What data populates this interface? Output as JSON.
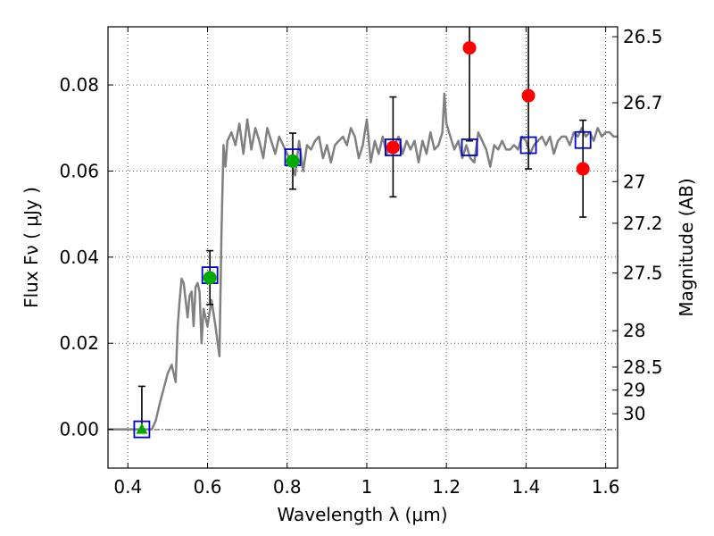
{
  "chart_data": {
    "type": "scatter",
    "xlabel": "Wavelength  λ (μm)",
    "ylabel": "Flux  Fν  ( μJy )",
    "y2label": "Magnitude (AB)",
    "xlim": [
      0.35,
      1.63
    ],
    "ylim": [
      -0.009,
      0.0935
    ],
    "grid": true,
    "xticks": [
      0.4,
      0.6,
      0.8,
      1.0,
      1.2,
      1.4,
      1.6
    ],
    "xtick_labels": [
      "0.4",
      "0.6",
      "0.8",
      "1",
      "1.2",
      "1.4",
      "1.6"
    ],
    "yticks": [
      0.0,
      0.02,
      0.04,
      0.06,
      0.08
    ],
    "ytick_labels": [
      "0.00",
      "0.02",
      "0.04",
      "0.06",
      "0.08"
    ],
    "mag_ticks": [
      "26.5",
      "26.7",
      "27",
      "27.2",
      "27.5",
      "28",
      "28.5",
      "29",
      "30"
    ],
    "colors": {
      "model": "#808080",
      "observed_red": "#ff0000",
      "observed_green": "#00aa00",
      "model_box": "#0000cc",
      "errorbar": "#000000",
      "grid": "#555555"
    },
    "model_spectrum": {
      "x": [
        0.35,
        0.44,
        0.46,
        0.47,
        0.48,
        0.5,
        0.51,
        0.52,
        0.525,
        0.53,
        0.535,
        0.54,
        0.545,
        0.55,
        0.555,
        0.56,
        0.565,
        0.57,
        0.575,
        0.58,
        0.585,
        0.59,
        0.6,
        0.61,
        0.62,
        0.63,
        0.635,
        0.64,
        0.645,
        0.65,
        0.66,
        0.67,
        0.68,
        0.69,
        0.7,
        0.71,
        0.72,
        0.73,
        0.74,
        0.75,
        0.76,
        0.77,
        0.78,
        0.79,
        0.8,
        0.81,
        0.82,
        0.83,
        0.84,
        0.85,
        0.86,
        0.87,
        0.88,
        0.89,
        0.9,
        0.91,
        0.92,
        0.93,
        0.94,
        0.95,
        0.96,
        0.97,
        0.98,
        0.99,
        1.0,
        1.01,
        1.02,
        1.03,
        1.04,
        1.05,
        1.06,
        1.07,
        1.08,
        1.09,
        1.1,
        1.11,
        1.12,
        1.13,
        1.14,
        1.15,
        1.16,
        1.17,
        1.18,
        1.19,
        1.195,
        1.2,
        1.21,
        1.22,
        1.23,
        1.24,
        1.25,
        1.26,
        1.27,
        1.28,
        1.29,
        1.3,
        1.31,
        1.32,
        1.33,
        1.34,
        1.35,
        1.36,
        1.37,
        1.38,
        1.39,
        1.4,
        1.41,
        1.42,
        1.43,
        1.44,
        1.45,
        1.46,
        1.47,
        1.48,
        1.49,
        1.5,
        1.51,
        1.52,
        1.53,
        1.54,
        1.55,
        1.56,
        1.57,
        1.58,
        1.59,
        1.6,
        1.61,
        1.62,
        1.63
      ],
      "y": [
        0.0,
        0.0,
        0.0,
        0.002,
        0.006,
        0.013,
        0.015,
        0.011,
        0.024,
        0.03,
        0.035,
        0.034,
        0.03,
        0.026,
        0.031,
        0.032,
        0.024,
        0.033,
        0.034,
        0.032,
        0.02,
        0.028,
        0.024,
        0.03,
        0.024,
        0.017,
        0.045,
        0.066,
        0.061,
        0.067,
        0.069,
        0.066,
        0.071,
        0.064,
        0.072,
        0.065,
        0.07,
        0.067,
        0.063,
        0.07,
        0.067,
        0.064,
        0.068,
        0.066,
        0.064,
        0.062,
        0.059,
        0.067,
        0.06,
        0.066,
        0.065,
        0.067,
        0.068,
        0.063,
        0.066,
        0.062,
        0.066,
        0.067,
        0.068,
        0.066,
        0.07,
        0.068,
        0.063,
        0.066,
        0.072,
        0.062,
        0.067,
        0.064,
        0.068,
        0.064,
        0.066,
        0.066,
        0.068,
        0.064,
        0.067,
        0.065,
        0.067,
        0.062,
        0.067,
        0.064,
        0.069,
        0.065,
        0.066,
        0.069,
        0.078,
        0.071,
        0.068,
        0.065,
        0.067,
        0.063,
        0.066,
        0.063,
        0.062,
        0.069,
        0.067,
        0.065,
        0.061,
        0.066,
        0.065,
        0.067,
        0.065,
        0.065,
        0.066,
        0.065,
        0.068,
        0.067,
        0.064,
        0.066,
        0.067,
        0.068,
        0.066,
        0.068,
        0.064,
        0.067,
        0.068,
        0.068,
        0.066,
        0.069,
        0.068,
        0.07,
        0.068,
        0.069,
        0.067,
        0.07,
        0.068,
        0.069,
        0.069,
        0.068,
        0.068
      ]
    },
    "observed": [
      {
        "x": 0.435,
        "y": 0.0,
        "yerr_low": 0.0,
        "yerr_high": 0.01,
        "color": "green",
        "marker": "triangle"
      },
      {
        "x": 0.606,
        "y": 0.0352,
        "yerr_low": 0.029,
        "yerr_high": 0.0415,
        "color": "green",
        "marker": "circle"
      },
      {
        "x": 0.814,
        "y": 0.0623,
        "yerr_low": 0.0558,
        "yerr_high": 0.0688,
        "color": "green",
        "marker": "circle"
      },
      {
        "x": 1.066,
        "y": 0.0655,
        "yerr_low": 0.054,
        "yerr_high": 0.0772,
        "color": "red",
        "marker": "circle"
      },
      {
        "x": 1.258,
        "y": 0.0886,
        "yerr_low": 0.067,
        "yerr_high": 0.0935,
        "color": "red",
        "marker": "circle"
      },
      {
        "x": 1.406,
        "y": 0.0775,
        "yerr_low": 0.0605,
        "yerr_high": 0.0935,
        "color": "red",
        "marker": "circle"
      },
      {
        "x": 1.543,
        "y": 0.0605,
        "yerr_low": 0.0493,
        "yerr_high": 0.0718,
        "color": "red",
        "marker": "circle"
      }
    ],
    "model_photometry": [
      {
        "x": 0.435,
        "y": 0.0
      },
      {
        "x": 0.606,
        "y": 0.0358
      },
      {
        "x": 0.814,
        "y": 0.0632
      },
      {
        "x": 1.066,
        "y": 0.0655
      },
      {
        "x": 1.258,
        "y": 0.0655
      },
      {
        "x": 1.406,
        "y": 0.066
      },
      {
        "x": 1.543,
        "y": 0.0672
      }
    ]
  }
}
